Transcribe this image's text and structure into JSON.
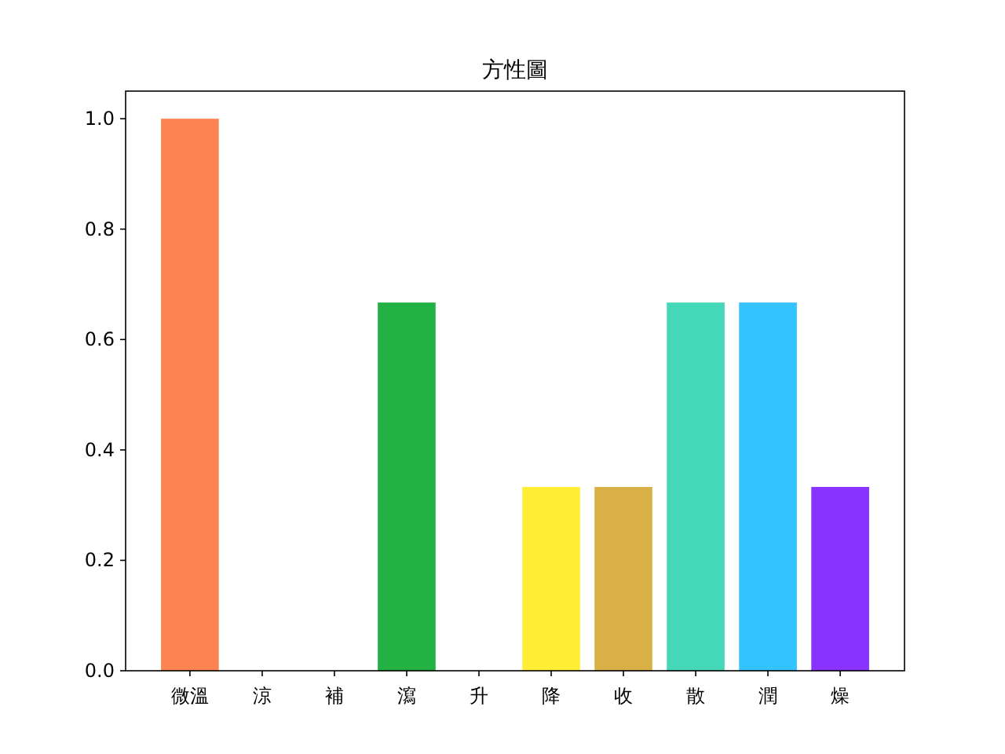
{
  "chart_data": {
    "type": "bar",
    "title": "方性圖",
    "categories": [
      "微溫",
      "涼",
      "補",
      "瀉",
      "升",
      "降",
      "收",
      "散",
      "潤",
      "燥"
    ],
    "values": [
      1.0,
      0,
      0,
      0.667,
      0,
      0.333,
      0.333,
      0.667,
      0.667,
      0.333
    ],
    "colors": [
      "#fc8452",
      "#73c0de",
      "#3ba272",
      "#21b243",
      "#9a60b4",
      "#ffee33",
      "#d8b045",
      "#45d8b8",
      "#33c4ff",
      "#8833ff"
    ],
    "ylim": [
      0,
      1.05
    ],
    "yticks": [
      {
        "value": 0,
        "label": "0.0"
      },
      {
        "value": 0.2,
        "label": "0.2"
      },
      {
        "value": 0.4,
        "label": "0.4"
      },
      {
        "value": 0.6,
        "label": "0.6"
      },
      {
        "value": 0.8,
        "label": "0.8"
      },
      {
        "value": 1.0,
        "label": "1.0"
      }
    ],
    "grid": false
  }
}
